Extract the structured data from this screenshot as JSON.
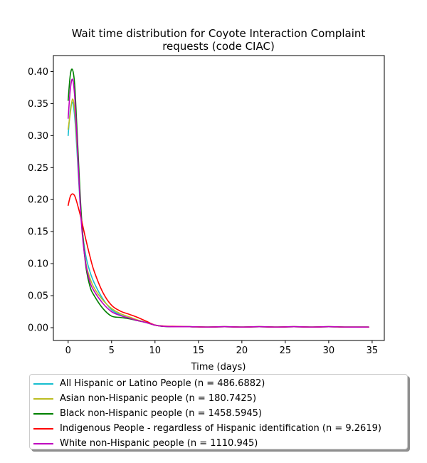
{
  "chart_data": {
    "type": "line",
    "title": "Wait time distribution  for Coyote Interaction Complaint requests (code CIAC)",
    "title_lines": [
      "Wait time distribution  for Coyote Interaction Complaint",
      "requests (code CIAC)"
    ],
    "xlabel": "Time (days)",
    "ylabel": "",
    "xlim": [
      -1.7,
      36.4
    ],
    "ylim": [
      -0.02,
      0.425
    ],
    "xticks": [
      0,
      5,
      10,
      15,
      20,
      25,
      30,
      35
    ],
    "xtick_labels": [
      "0",
      "5",
      "10",
      "15",
      "20",
      "25",
      "30",
      "35"
    ],
    "yticks": [
      0.0,
      0.05,
      0.1,
      0.15,
      0.2,
      0.25,
      0.3,
      0.35,
      0.4
    ],
    "ytick_labels": [
      "0.00",
      "0.05",
      "0.10",
      "0.15",
      "0.20",
      "0.25",
      "0.30",
      "0.35",
      "0.40"
    ],
    "grid": false,
    "legend_position": "below",
    "x": [
      0,
      0.25,
      0.5,
      0.75,
      1,
      1.5,
      2,
      2.5,
      3,
      4,
      5,
      6,
      7,
      8,
      9,
      10,
      11,
      12,
      14,
      16,
      18,
      20,
      22,
      24,
      26,
      28,
      30,
      32,
      34.6
    ],
    "series": [
      {
        "name": "All Hispanic or Latino People (n = 486.6882)",
        "color": "#17becf",
        "values": [
          0.3,
          0.34,
          0.352,
          0.33,
          0.28,
          0.17,
          0.115,
          0.088,
          0.07,
          0.045,
          0.028,
          0.02,
          0.015,
          0.011,
          0.008,
          0.004,
          0.002,
          0.0015,
          0.0015,
          0.001,
          0.0015,
          0.001,
          0.0015,
          0.001,
          0.0015,
          0.001,
          0.0015,
          0.001,
          0.001
        ]
      },
      {
        "name": "Asian non-Hispanic people (n = 180.7425)",
        "color": "#bcbd22",
        "values": [
          0.31,
          0.335,
          0.357,
          0.34,
          0.29,
          0.175,
          0.105,
          0.078,
          0.062,
          0.043,
          0.03,
          0.022,
          0.017,
          0.012,
          0.008,
          0.004,
          0.0025,
          0.0015,
          0.0015,
          0.001,
          0.0015,
          0.001,
          0.0015,
          0.001,
          0.0015,
          0.001,
          0.0015,
          0.001,
          0.001
        ]
      },
      {
        "name": "Black non-Hispanic people (n = 1458.5945)",
        "color": "#008000",
        "values": [
          0.355,
          0.395,
          0.403,
          0.38,
          0.315,
          0.18,
          0.1,
          0.065,
          0.05,
          0.03,
          0.018,
          0.016,
          0.014,
          0.011,
          0.008,
          0.004,
          0.002,
          0.0015,
          0.0015,
          0.001,
          0.0015,
          0.001,
          0.0015,
          0.001,
          0.0015,
          0.001,
          0.0015,
          0.001,
          0.001
        ]
      },
      {
        "name": "Indigenous People - regardless of Hispanic identification (n = 9.2619)",
        "color": "#ff0000",
        "values": [
          0.191,
          0.205,
          0.209,
          0.206,
          0.196,
          0.17,
          0.14,
          0.112,
          0.088,
          0.055,
          0.035,
          0.026,
          0.021,
          0.016,
          0.01,
          0.004,
          0.0025,
          0.002,
          0.0015,
          0.001,
          0.0015,
          0.001,
          0.0015,
          0.001,
          0.0015,
          0.001,
          0.0015,
          0.001,
          0.001
        ]
      },
      {
        "name": "White non-Hispanic people (n = 1110.945)",
        "color": "#bf00bf",
        "values": [
          0.327,
          0.372,
          0.388,
          0.362,
          0.3,
          0.168,
          0.102,
          0.072,
          0.057,
          0.038,
          0.025,
          0.019,
          0.015,
          0.011,
          0.008,
          0.004,
          0.002,
          0.0015,
          0.0015,
          0.001,
          0.0015,
          0.001,
          0.0015,
          0.001,
          0.0015,
          0.001,
          0.0015,
          0.001,
          0.001
        ]
      }
    ]
  }
}
